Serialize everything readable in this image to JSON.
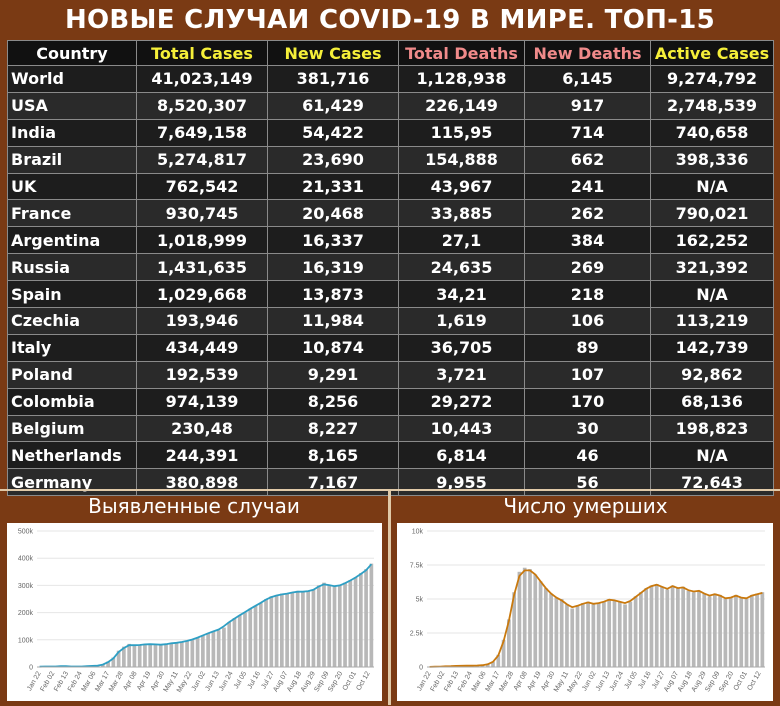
{
  "title": "НОВЫЕ СЛУЧАИ COVID-19 В МИРЕ. ТОП-15",
  "table": {
    "headers": [
      "Country",
      "Total Cases",
      "New Cases",
      "Total Deaths",
      "New Deaths",
      "Active Cases"
    ],
    "header_colors": [
      "#ffffff",
      "#f5ef39",
      "#f5ef39",
      "#f08a8a",
      "#f08a8a",
      "#f5ef39"
    ],
    "rows": [
      [
        "World",
        "41,023,149",
        "381,716",
        "1,128,938",
        "6,145",
        "9,274,792"
      ],
      [
        "USA",
        "8,520,307",
        "61,429",
        "226,149",
        "917",
        "2,748,539"
      ],
      [
        "India",
        "7,649,158",
        "54,422",
        "115,95",
        "714",
        "740,658"
      ],
      [
        "Brazil",
        "5,274,817",
        "23,690",
        "154,888",
        "662",
        "398,336"
      ],
      [
        "UK",
        "762,542",
        "21,331",
        "43,967",
        "241",
        "N/A"
      ],
      [
        "France",
        "930,745",
        "20,468",
        "33,885",
        "262",
        "790,021"
      ],
      [
        "Argentina",
        "1,018,999",
        "16,337",
        "27,1",
        "384",
        "162,252"
      ],
      [
        "Russia",
        "1,431,635",
        "16,319",
        "24,635",
        "269",
        "321,392"
      ],
      [
        "Spain",
        "1,029,668",
        "13,873",
        "34,21",
        "218",
        "N/A"
      ],
      [
        "Czechia",
        "193,946",
        "11,984",
        "1,619",
        "106",
        "113,219"
      ],
      [
        "Italy",
        "434,449",
        "10,874",
        "36,705",
        "89",
        "142,739"
      ],
      [
        "Poland",
        "192,539",
        "9,291",
        "3,721",
        "107",
        "92,862"
      ],
      [
        "Colombia",
        "974,139",
        "8,256",
        "29,272",
        "170",
        "68,136"
      ],
      [
        "Belgium",
        "230,48",
        "8,227",
        "10,443",
        "30",
        "198,823"
      ],
      [
        "Netherlands",
        "244,391",
        "8,165",
        "6,814",
        "46",
        "N/A"
      ],
      [
        "Germany",
        "380,898",
        "7,167",
        "9,955",
        "56",
        "72,643"
      ]
    ]
  },
  "charts_labels": {
    "cases_title": "Выявленные случаи",
    "deaths_title": "Число умерших"
  },
  "chart_data": [
    {
      "type": "bar",
      "title": "Выявленные случаи",
      "x_ticks": [
        "Jan 22",
        "Feb 02",
        "Feb 13",
        "Feb 24",
        "Mar 06",
        "Mar 17",
        "Mar 28",
        "Apr 08",
        "Apr 19",
        "Apr 30",
        "May 11",
        "May 22",
        "Jun 02",
        "Jun 13",
        "Jun 24",
        "Jul 05",
        "Jul 16",
        "Jul 27",
        "Aug 07",
        "Aug 18",
        "Aug 29",
        "Sep 09",
        "Sep 20",
        "Oct 01",
        "Oct 12"
      ],
      "y_ticks": [
        "0",
        "100k",
        "200k",
        "300k",
        "400k",
        "500k"
      ],
      "ylim": [
        0,
        500000
      ],
      "series": [
        {
          "kind": "bar",
          "color": "#b8b8b8",
          "values": [
            1000,
            2000,
            2000,
            2000,
            3000,
            3000,
            2000,
            2000,
            2000,
            3000,
            5000,
            5000,
            10000,
            20000,
            35000,
            60000,
            75000,
            85000,
            80000,
            80000,
            85000,
            85000,
            82000,
            80000,
            85000,
            88000,
            90000,
            92000,
            95000,
            100000,
            108000,
            115000,
            125000,
            130000,
            135000,
            145000,
            165000,
            180000,
            190000,
            200000,
            215000,
            225000,
            235000,
            250000,
            260000,
            265000,
            270000,
            270000,
            275000,
            280000,
            275000,
            280000,
            285000,
            300000,
            310000,
            300000,
            295000,
            300000,
            310000,
            320000,
            330000,
            345000,
            360000,
            380000
          ]
        },
        {
          "kind": "line",
          "color": "#2e9fc4",
          "values": [
            1000,
            2000,
            2000,
            2000,
            3000,
            3000,
            2000,
            2000,
            2000,
            3000,
            4000,
            5000,
            9000,
            18000,
            32000,
            55000,
            70000,
            80000,
            80000,
            81000,
            83000,
            84000,
            83000,
            82000,
            84000,
            87000,
            89000,
            92000,
            96000,
            101000,
            108000,
            116000,
            124000,
            131000,
            138000,
            150000,
            165000,
            178000,
            190000,
            202000,
            214000,
            225000,
            236000,
            248000,
            257000,
            263000,
            267000,
            270000,
            274000,
            277000,
            277000,
            279000,
            284000,
            296000,
            304000,
            301000,
            297000,
            300000,
            308000,
            318000,
            329000,
            342000,
            356000,
            378000
          ]
        }
      ]
    },
    {
      "type": "bar",
      "title": "Число умерших",
      "x_ticks": [
        "Jan 22",
        "Feb 02",
        "Feb 13",
        "Feb 24",
        "Mar 06",
        "Mar 17",
        "Mar 28",
        "Apr 08",
        "Apr 19",
        "Apr 30",
        "May 11",
        "May 22",
        "Jun 02",
        "Jun 13",
        "Jun 24",
        "Jul 05",
        "Jul 16",
        "Jul 27",
        "Aug 07",
        "Aug 18",
        "Aug 29",
        "Sep 09",
        "Sep 20",
        "Oct 01",
        "Oct 12"
      ],
      "y_ticks": [
        "0",
        "2.5k",
        "5k",
        "7.5k",
        "10k"
      ],
      "ylim": [
        0,
        10000
      ],
      "series": [
        {
          "kind": "bar",
          "color": "#b8b8b8",
          "values": [
            10,
            20,
            30,
            50,
            60,
            80,
            90,
            100,
            100,
            100,
            120,
            200,
            400,
            900,
            2000,
            3500,
            5500,
            7000,
            7300,
            7200,
            6800,
            6300,
            5800,
            5400,
            5100,
            5000,
            4600,
            4300,
            4500,
            4700,
            4800,
            4600,
            4700,
            4800,
            5000,
            4900,
            4800,
            4600,
            4800,
            5200,
            5500,
            5800,
            6000,
            6100,
            5900,
            5700,
            6000,
            5800,
            5900,
            5600,
            5500,
            5600,
            5400,
            5200,
            5400,
            5300,
            5000,
            5100,
            5300,
            5100,
            5000,
            5300,
            5400,
            5500
          ]
        },
        {
          "kind": "line",
          "color": "#c9790e",
          "values": [
            10,
            20,
            30,
            50,
            60,
            80,
            90,
            100,
            100,
            110,
            130,
            200,
            380,
            850,
            1900,
            3400,
            5300,
            6700,
            7100,
            7100,
            6800,
            6300,
            5800,
            5400,
            5100,
            4900,
            4600,
            4400,
            4500,
            4650,
            4750,
            4650,
            4700,
            4800,
            4950,
            4900,
            4800,
            4700,
            4850,
            5150,
            5450,
            5750,
            5950,
            6050,
            5900,
            5750,
            5950,
            5800,
            5850,
            5650,
            5550,
            5600,
            5400,
            5250,
            5350,
            5250,
            5050,
            5100,
            5250,
            5100,
            5050,
            5250,
            5350,
            5450
          ]
        }
      ]
    }
  ]
}
